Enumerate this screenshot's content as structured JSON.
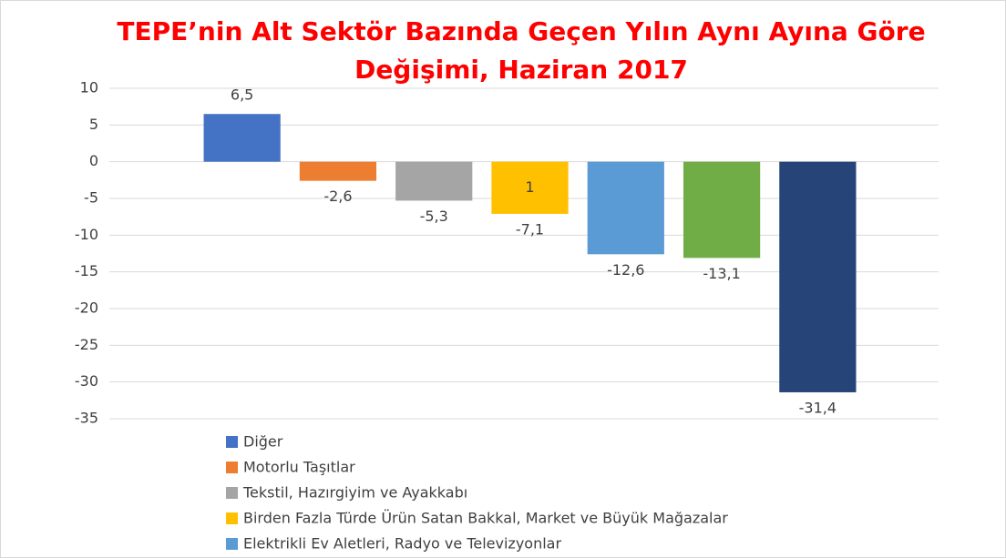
{
  "chart_data": {
    "type": "bar",
    "title": [
      "TEPE’nin Alt Sektör Bazında Geçen Yılın Aynı Ayına Göre",
      "Değişimi, Haziran 2017"
    ],
    "categories": [
      "Diğer",
      "Motorlu Taşıtlar",
      "Tekstil, Hazırgiyim ve Ayakkabı",
      "Birden Fazla Türde Ürün Satan Bakkal, Market ve Büyük Mağazalar",
      "Elektrikli Ev Aletleri,  Radyo ve Televizyonlar",
      null,
      null
    ],
    "values": [
      6.5,
      -2.6,
      -5.3,
      -7.1,
      -12.6,
      -13.1,
      -31.4
    ],
    "value_labels": [
      "6,5",
      "-2,6",
      "-5,3",
      "-7,1",
      "-12,6",
      "-13,1",
      "-31,4"
    ],
    "colors": [
      "#4472c4",
      "#ed7d31",
      "#a5a5a5",
      "#ffc000",
      "#5b9bd5",
      "#70ad47",
      "#264478"
    ],
    "annotation": "1",
    "ylim": [
      -35,
      10
    ],
    "yticks": [
      10,
      5,
      0,
      -5,
      -10,
      -15,
      -20,
      -25,
      -30,
      -35
    ],
    "grid": true
  }
}
